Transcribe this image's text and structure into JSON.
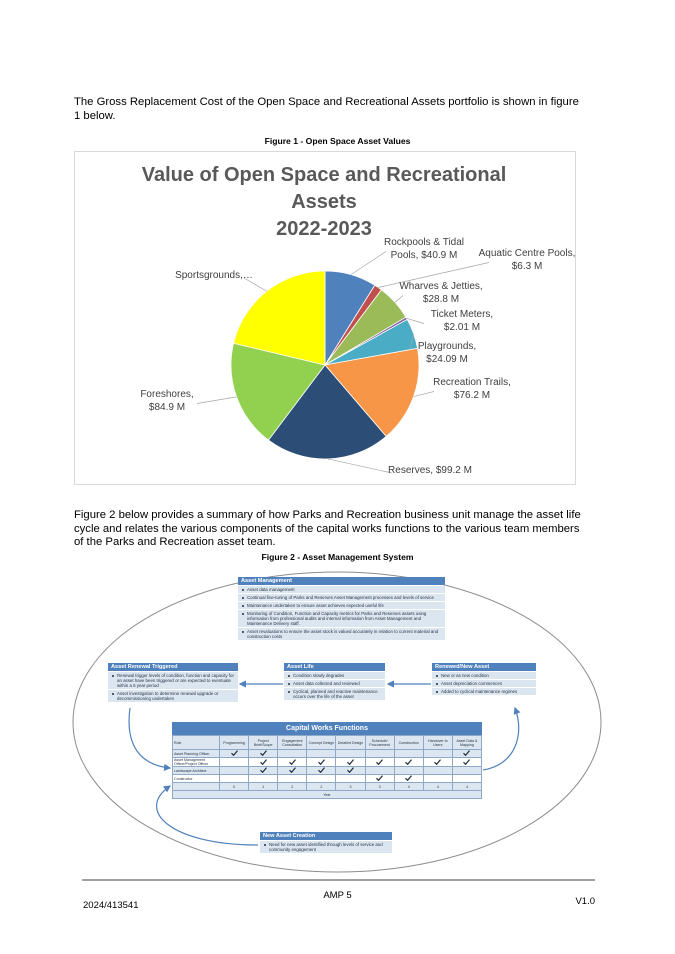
{
  "paragraph_1": "The Gross Replacement Cost of the Open Space and Recreational Assets portfolio is shown in figure 1 below.",
  "figure_1_caption": "Figure 1 - Open Space Asset Values",
  "chart_data": {
    "type": "pie",
    "title": [
      "Value of Open Space and Recreational",
      "Assets",
      "2022-2023"
    ],
    "values": [
      40.9,
      6.3,
      28.8,
      2.01,
      24.09,
      76.2,
      99.2,
      84.9,
      98
    ],
    "value_labels": [
      [
        "Rockpools & Tidal",
        "Pools, $40.9 M"
      ],
      [
        "Aquatic Centre Pools,",
        "$6.3 M"
      ],
      [
        "Wharves & Jetties,",
        "$28.8 M"
      ],
      [
        "Ticket Meters,",
        "$2.01 M"
      ],
      [
        "Playgrounds,",
        "$24.09 M"
      ],
      [
        "Recreation Trails,",
        "$76.2 M"
      ],
      [
        "Reserves, $99.2 M"
      ],
      [
        "Foreshores,",
        "$84.9 M"
      ],
      [
        "Sportsgrounds,…"
      ]
    ],
    "colors": [
      "#4f81bd",
      "#c0504d",
      "#9bbb59",
      "#8064a2",
      "#4bacc6",
      "#f79646",
      "#2c4d75",
      "#92d050",
      "#ffff00"
    ]
  },
  "paragraph_2": "Figure 2 below provides a summary of how Parks and Recreation business unit manage the asset life cycle and relates the various components of the capital works functions to the various team members of the Parks and Recreation asset team.",
  "figure_2_caption": "Figure 2 - Asset Management System",
  "diagram": {
    "boxes": [
      {
        "title": "Asset Management",
        "items": [
          "Asset data management",
          "Continual fine-tuning of Parks and Reserves Asset Management processes and levels of service",
          "Maintenance undertaken to ensure asset achieves expected useful life",
          "Monitoring of Condition, Function and Capacity metrics for Parks and Reserves assets using information from professional audits and internal information from Asset Management and Maintenance Delivery staff.",
          "Asset revaluations to ensure the asset stock is valued accurately in relation to current material and construction costs"
        ]
      },
      {
        "title": "Asset Renewal Triggered",
        "items": [
          "Renewal trigger levels of condition, function and capacity for an asset have been triggered or are expected to eventuate within a 5 year period",
          "Asset investigation to determine renewal upgrade or decommissioning undertaken"
        ]
      },
      {
        "title": "Asset Life",
        "items": [
          "Condition slowly degrades",
          "Asset data collected and reviewed",
          "Cyclical, planned and reactive maintenance occurs over the life of the asset"
        ]
      },
      {
        "title": "Renewed/New Asset",
        "items": [
          "New or as new condition",
          "Asset depreciation commences",
          "Added to cyclical maintenance regimes"
        ]
      },
      {
        "title": "New Asset Creation",
        "items": [
          "Need for new asset identified through levels of service and community engagement"
        ]
      }
    ],
    "table": {
      "title": "Capital Works Functions",
      "columns": [
        "Role",
        "Programming",
        "Project Brief/Scope",
        "Engagement Consultation",
        "Concept Design",
        "Detailed Design",
        "Schedule/ Procurement",
        "Construction",
        "Handover to Users",
        "Asset Data & Mapping"
      ],
      "rows": [
        {
          "role": "Asset Planning Officer",
          "checks": [
            true,
            true,
            false,
            false,
            false,
            false,
            false,
            false,
            true
          ]
        },
        {
          "role": "Asset Management Officer/Project Officer",
          "checks": [
            false,
            true,
            true,
            true,
            true,
            true,
            true,
            true,
            true
          ]
        },
        {
          "role": "Landscape Architect",
          "checks": [
            false,
            true,
            true,
            true,
            true,
            false,
            false,
            false,
            false
          ]
        },
        {
          "role": "Constructor",
          "checks": [
            false,
            false,
            false,
            false,
            false,
            true,
            true,
            false,
            false
          ]
        }
      ],
      "years": [
        "0",
        "1",
        "2",
        "2",
        "3",
        "3",
        "4",
        "4",
        "4"
      ],
      "year_label": "Year"
    }
  },
  "footer": {
    "center": "AMP 5",
    "left": "2024/413541",
    "right": "V1.0"
  }
}
